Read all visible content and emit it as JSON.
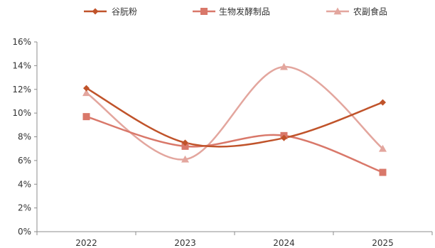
{
  "chart_data": {
    "type": "line",
    "title": "",
    "xlabel": "",
    "ylabel": "",
    "categories": [
      "2022",
      "2023",
      "2024",
      "2025"
    ],
    "ylim": [
      0,
      16
    ],
    "yticks": [
      "0%",
      "2%",
      "4%",
      "6%",
      "8%",
      "10%",
      "12%",
      "14%",
      "16%"
    ],
    "unit": "%",
    "grid": false,
    "smooth": true,
    "legend": "top",
    "series": [
      {
        "name": "谷朊粉",
        "values": [
          12.1,
          7.5,
          7.9,
          10.9
        ],
        "color": "#c0532a",
        "marker": "diamond"
      },
      {
        "name": "生物发酵制品",
        "values": [
          9.7,
          7.2,
          8.1,
          5.0
        ],
        "color": "#d9786a",
        "marker": "square"
      },
      {
        "name": "农副食品",
        "values": [
          11.7,
          6.1,
          13.9,
          7.0
        ],
        "color": "#e3a69e",
        "marker": "triangle"
      }
    ]
  }
}
